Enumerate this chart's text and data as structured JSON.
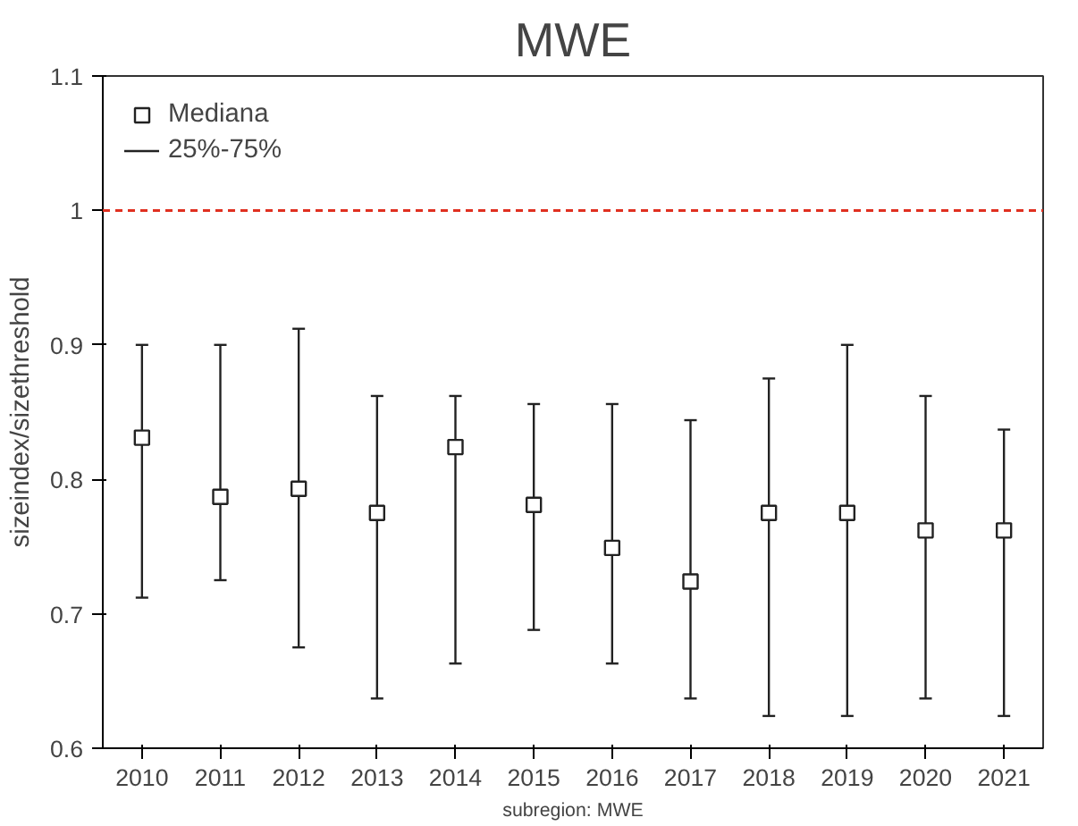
{
  "chart_data": {
    "type": "scatter",
    "title": "MWE",
    "xlabel": "subregion: MWE",
    "ylabel": "sizeindex/sizethreshold",
    "categories": [
      "2010",
      "2011",
      "2012",
      "2013",
      "2014",
      "2015",
      "2016",
      "2017",
      "2018",
      "2019",
      "2020",
      "2021"
    ],
    "series": [
      {
        "name": "Mediana",
        "color": "#222222",
        "values": [
          0.831,
          0.787,
          0.793,
          0.775,
          0.824,
          0.781,
          0.749,
          0.724,
          0.775,
          0.775,
          0.762,
          0.762
        ],
        "errors": [
          [
            0.712,
            0.9
          ],
          [
            0.725,
            0.9
          ],
          [
            0.675,
            0.912
          ],
          [
            0.637,
            0.862
          ],
          [
            0.663,
            0.862
          ],
          [
            0.688,
            0.856
          ],
          [
            0.663,
            0.856
          ],
          [
            0.637,
            0.844
          ],
          [
            0.624,
            0.875
          ],
          [
            0.624,
            0.9
          ],
          [
            0.637,
            0.862
          ],
          [
            0.624,
            0.837
          ]
        ]
      }
    ],
    "annotations": [
      "25%-75%"
    ],
    "ref_lines": [
      {
        "axis": "y",
        "value": 1,
        "label": null,
        "color": "#e03020",
        "line_style": "dashed"
      }
    ],
    "ylim": [
      0.6,
      1.1
    ],
    "yticks": [
      0.6,
      0.7,
      0.8,
      0.9,
      1,
      1.1
    ],
    "marker": "square",
    "grid": false,
    "legend": "top left"
  }
}
